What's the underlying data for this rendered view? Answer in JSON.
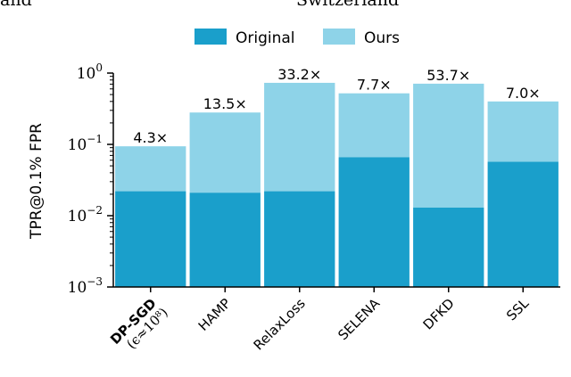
{
  "header_fragments": {
    "left": "and",
    "right": "Switzerland"
  },
  "chart_data": {
    "type": "bar",
    "stacked": true,
    "yscale": "log",
    "ylabel": "TPR@0.1% FPR",
    "ylim": [
      0.001,
      1
    ],
    "yticks": [
      {
        "value": 0.001,
        "base": "10",
        "exp": "−3"
      },
      {
        "value": 0.01,
        "base": "10",
        "exp": "−2"
      },
      {
        "value": 0.1,
        "base": "10",
        "exp": "−1"
      },
      {
        "value": 1,
        "base": "10",
        "exp": "0"
      }
    ],
    "categories": [
      "DP-SGD",
      "HAMP",
      "RelaxLoss",
      "SELENA",
      "DFKD",
      "SSL"
    ],
    "category_note": "(ϵ≈10⁸)",
    "series": [
      {
        "name": "Original",
        "color": "#1a9fcb",
        "values": [
          0.022,
          0.021,
          0.022,
          0.066,
          0.013,
          0.057
        ]
      },
      {
        "name": "Ours",
        "color": "#8ed3e8",
        "values": [
          0.094,
          0.28,
          0.73,
          0.52,
          0.71,
          0.4
        ]
      }
    ],
    "annotations": [
      "4.3×",
      "13.5×",
      "33.2×",
      "7.7×",
      "53.7×",
      "7.0×"
    ],
    "legend": "top-center",
    "grid": false
  }
}
